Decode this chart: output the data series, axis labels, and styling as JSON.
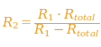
{
  "formula": "$R_2 = \\dfrac{R_1 \\cdot R_{total}}{R_1 - R_{total}}$",
  "text_color": "#F0A020",
  "background_color": "#FFFFFF",
  "figsize": [
    1.13,
    0.53
  ],
  "dpi": 100,
  "fontsize": 10.5
}
